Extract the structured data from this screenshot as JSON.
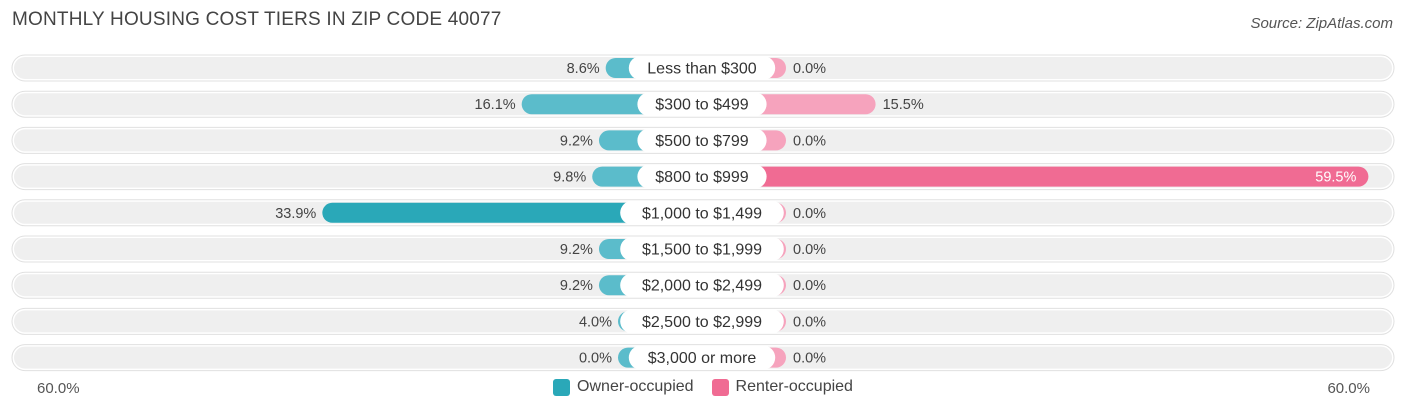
{
  "header": {
    "title": "MONTHLY HOUSING COST TIERS IN ZIP CODE 40077",
    "source": "Source: ZipAtlas.com"
  },
  "colors": {
    "owner": "#5bbccb",
    "owner_strong": "#2aa8b8",
    "renter": "#f6a3bd",
    "renter_strong": "#f06b93",
    "row_bg": "#efefef",
    "label_bg": "#ffffff"
  },
  "axis": {
    "left_label": "60.0%",
    "right_label": "60.0%"
  },
  "legend": {
    "owner_label": "Owner-occupied",
    "renter_label": "Renter-occupied"
  },
  "chart_data": {
    "type": "bar",
    "orientation": "horizontal-diverging",
    "title": "MONTHLY HOUSING COST TIERS IN ZIP CODE 40077",
    "xlim": [
      -60,
      60
    ],
    "categories": [
      "Less than $300",
      "$300 to $499",
      "$500 to $799",
      "$800 to $999",
      "$1,000 to $1,499",
      "$1,500 to $1,999",
      "$2,000 to $2,499",
      "$2,500 to $2,999",
      "$3,000 or more"
    ],
    "series": [
      {
        "name": "Owner-occupied",
        "values": [
          8.6,
          16.1,
          9.2,
          9.8,
          33.9,
          9.2,
          9.2,
          4.0,
          0.0
        ],
        "labels": [
          "8.6%",
          "16.1%",
          "9.2%",
          "9.8%",
          "33.9%",
          "9.2%",
          "9.2%",
          "4.0%",
          "0.0%"
        ]
      },
      {
        "name": "Renter-occupied",
        "values": [
          0.0,
          15.5,
          0.0,
          59.5,
          0.0,
          0.0,
          0.0,
          0.0,
          0.0
        ],
        "labels": [
          "0.0%",
          "15.5%",
          "0.0%",
          "59.5%",
          "0.0%",
          "0.0%",
          "0.0%",
          "0.0%",
          "0.0%"
        ]
      }
    ],
    "legend_position": "bottom-center"
  }
}
